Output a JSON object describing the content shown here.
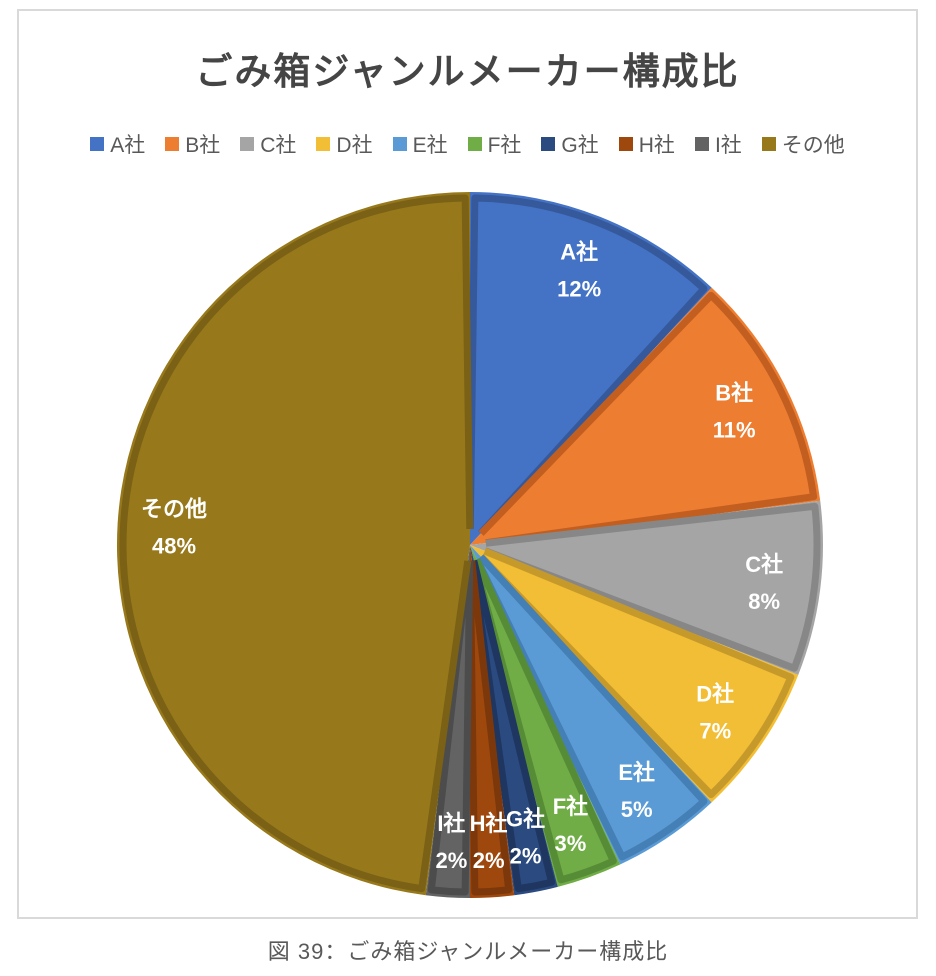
{
  "page": {
    "background": "#ffffff",
    "panel_border_color": "#d9d9d9"
  },
  "chart": {
    "title_color": "#454545",
    "legend_text_color": "#595959",
    "data_label_color": "#ffffff"
  },
  "caption": {
    "text": "図 39：ごみ箱ジャンルメーカー構成比",
    "color": "#595959"
  },
  "chart_data": {
    "type": "pie",
    "title": "ごみ箱ジャンルメーカー構成比",
    "legend_position": "top",
    "labels_position": "inside",
    "label_format": "name + percent",
    "start_angle_deg": 0,
    "direction": "clockwise",
    "slices": [
      {
        "label": "A社",
        "value": 12,
        "pct_label": "12%",
        "color": "#4472C4",
        "edge_color": "#35599B"
      },
      {
        "label": "B社",
        "value": 11,
        "pct_label": "11%",
        "color": "#ED7D31",
        "edge_color": "#C25E1F"
      },
      {
        "label": "C社",
        "value": 8,
        "pct_label": "8%",
        "color": "#A5A5A5",
        "edge_color": "#878787"
      },
      {
        "label": "D社",
        "value": 7,
        "pct_label": "7%",
        "color": "#F2BE35",
        "edge_color": "#C6992B"
      },
      {
        "label": "E社",
        "value": 5,
        "pct_label": "5%",
        "color": "#5B9BD5",
        "edge_color": "#447FB5"
      },
      {
        "label": "F社",
        "value": 3,
        "pct_label": "3%",
        "color": "#70AD47",
        "edge_color": "#578C37"
      },
      {
        "label": "G社",
        "value": 2,
        "pct_label": "2%",
        "color": "#2A4A80",
        "edge_color": "#1E3660"
      },
      {
        "label": "H社",
        "value": 2,
        "pct_label": "2%",
        "color": "#9E480E",
        "edge_color": "#7C380B"
      },
      {
        "label": "I社",
        "value": 2,
        "pct_label": "2%",
        "color": "#636363",
        "edge_color": "#4C4C4C"
      },
      {
        "label": "その他",
        "value": 48,
        "pct_label": "48%",
        "color": "#97791B",
        "edge_color": "#7A6115"
      }
    ]
  }
}
